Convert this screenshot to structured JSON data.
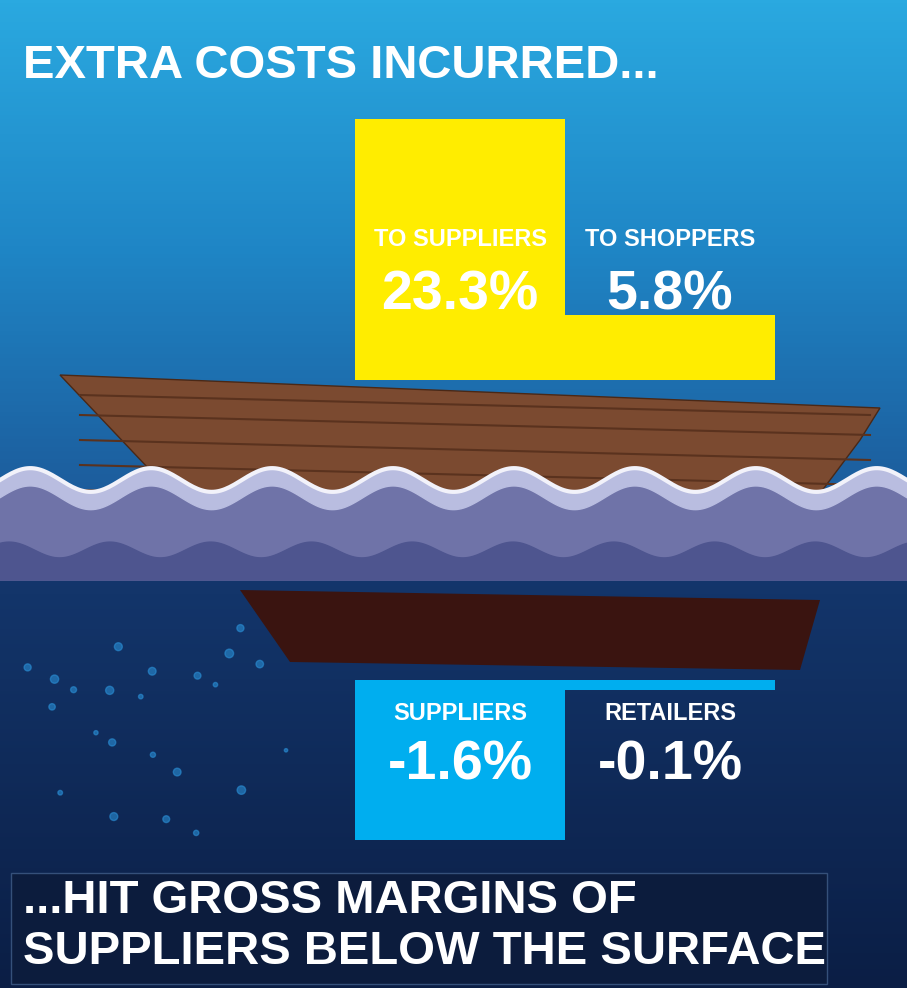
{
  "chart_data": [
    {
      "type": "bar",
      "title": "EXTRA COSTS INCURRED...",
      "categories": [
        "TO SUPPLIERS",
        "TO SHOPPERS"
      ],
      "values": [
        23.3,
        5.8
      ],
      "value_labels": [
        "23.3%",
        "5.8%"
      ],
      "colors": [
        "#ffed00",
        "#ffed00"
      ],
      "ylim": [
        0,
        25
      ],
      "data_labels": true,
      "tick_labels": false,
      "grid": false
    },
    {
      "type": "bar",
      "title": "...HIT GROSS MARGINS OF SUPPLIERS BELOW THE SURFACE",
      "categories": [
        "SUPPLIERS",
        "RETAILERS"
      ],
      "values": [
        -1.6,
        -0.1
      ],
      "value_labels": [
        "-1.6%",
        "-0.1%"
      ],
      "colors": [
        "#00aeef",
        "#00aeef"
      ],
      "ylim": [
        -1.7,
        0
      ],
      "data_labels": true,
      "tick_labels": false,
      "grid": false
    }
  ]
}
